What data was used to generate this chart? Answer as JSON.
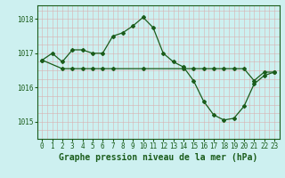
{
  "title": "Graphe pression niveau de la mer (hPa)",
  "bg_color": "#cdf0f0",
  "grid_color": "#c8e8e0",
  "line_color": "#1a5c1a",
  "ylim": [
    1014.5,
    1018.4
  ],
  "yticks": [
    1015,
    1016,
    1017,
    1018
  ],
  "xlim": [
    -0.5,
    23.5
  ],
  "xticks": [
    0,
    1,
    2,
    3,
    4,
    5,
    6,
    7,
    8,
    9,
    10,
    11,
    12,
    13,
    14,
    15,
    16,
    17,
    18,
    19,
    20,
    21,
    22,
    23
  ],
  "series1_x": [
    0,
    1,
    2,
    3,
    4,
    5,
    6,
    7,
    8,
    9,
    10,
    11,
    12,
    13,
    14,
    15,
    16,
    17,
    18,
    19,
    20,
    21,
    22,
    23
  ],
  "series1_y": [
    1016.8,
    1017.0,
    1016.75,
    1017.1,
    1017.1,
    1017.0,
    1017.0,
    1017.5,
    1017.6,
    1017.8,
    1018.05,
    1017.75,
    1017.0,
    1016.75,
    1016.6,
    1016.2,
    1015.6,
    1015.2,
    1015.05,
    1015.1,
    1015.45,
    1016.1,
    1016.35,
    1016.45
  ],
  "series2_x": [
    0,
    2,
    3,
    4,
    5,
    6,
    7,
    10,
    14,
    15,
    16,
    17,
    18,
    19,
    20,
    21,
    22,
    23
  ],
  "series2_y": [
    1016.8,
    1016.55,
    1016.55,
    1016.55,
    1016.55,
    1016.55,
    1016.55,
    1016.55,
    1016.55,
    1016.55,
    1016.55,
    1016.55,
    1016.55,
    1016.55,
    1016.55,
    1016.2,
    1016.45,
    1016.45
  ],
  "tick_fontsize": 5.5,
  "label_fontsize": 7
}
